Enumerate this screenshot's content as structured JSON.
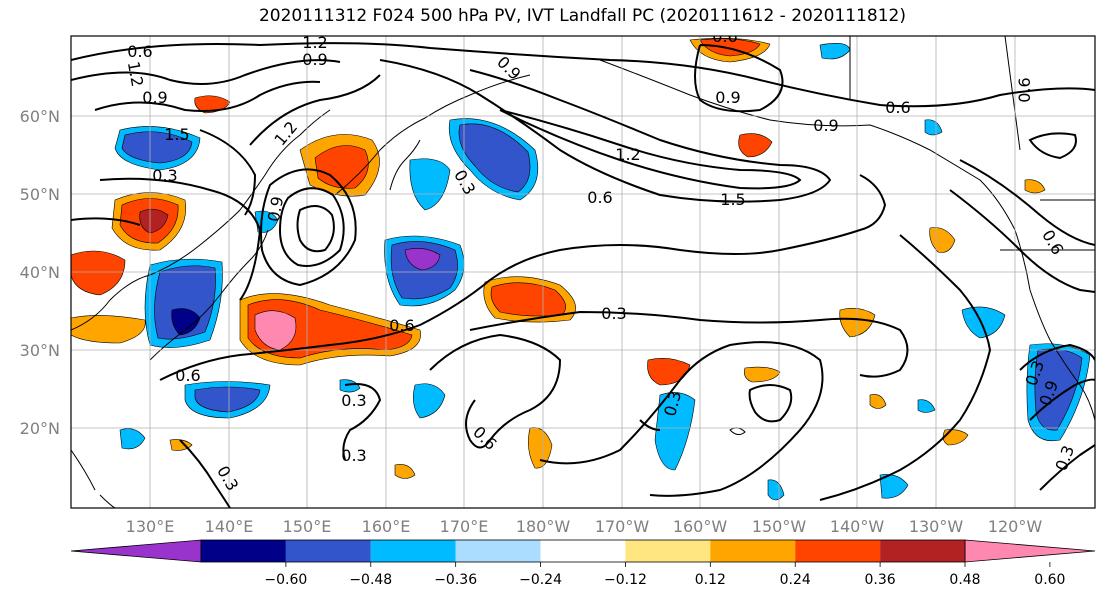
{
  "title": "2020111312 F024 500 hPa PV, IVT Landfall PC (2020111612 - 2020111812)",
  "map": {
    "lat_labels": [
      "60°N",
      "50°N",
      "40°N",
      "30°N",
      "20°N"
    ],
    "lon_labels": [
      "130°E",
      "140°E",
      "150°E",
      "160°E",
      "170°E",
      "180°W",
      "170°W",
      "160°W",
      "150°W",
      "140°W",
      "130°W",
      "120°W"
    ],
    "contour_labels": [
      "0.6",
      "1.2",
      "0.9",
      "1.2",
      "0.9",
      "0.9",
      "1.5",
      "0.3",
      "1.2",
      "0.6",
      "0.9",
      "0.6",
      "0.9",
      "1.2",
      "0.3",
      "0.6",
      "1.5",
      "0.9",
      "0.6",
      "0.3",
      "0.6",
      "0.6",
      "0.3",
      "0.3",
      "0.3",
      "0.6",
      "0.3",
      "0.9",
      "0.6",
      "0.3",
      "0.3"
    ]
  },
  "colorbar": {
    "ticks": [
      "−0.60",
      "−0.48",
      "−0.36",
      "−0.24",
      "−0.12",
      "0.12",
      "0.24",
      "0.36",
      "0.48",
      "0.60"
    ],
    "colors": [
      "#9933cc",
      "#000088",
      "#3355cc",
      "#00bbff",
      "#aaddff",
      "#ffffff",
      "#ffe680",
      "#ffa500",
      "#ff4400",
      "#b22222",
      "#ff88b0"
    ]
  }
}
